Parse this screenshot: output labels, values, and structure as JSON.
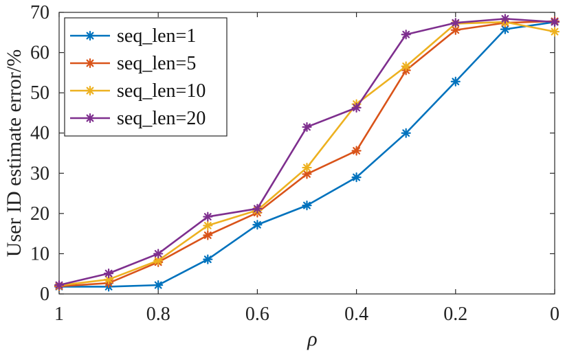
{
  "chart_data": {
    "type": "line",
    "title": "",
    "xlabel": "ρ",
    "ylabel": "User ID estimate error/%",
    "x": [
      1,
      0.9,
      0.8,
      0.7,
      0.6,
      0.5,
      0.4,
      0.3,
      0.2,
      0.1,
      0
    ],
    "xlim": [
      1,
      0
    ],
    "ylim": [
      0,
      70
    ],
    "xticks": [
      1,
      0.8,
      0.6,
      0.4,
      0.2,
      0
    ],
    "xtick_labels": [
      "1",
      "0.8",
      "0.6",
      "0.4",
      "0.2",
      "0"
    ],
    "yticks": [
      0,
      10,
      20,
      30,
      40,
      50,
      60,
      70
    ],
    "ytick_labels": [
      "0",
      "10",
      "20",
      "30",
      "40",
      "50",
      "60",
      "70"
    ],
    "grid": false,
    "legend_position": "top-left",
    "marker": "asterisk",
    "series": [
      {
        "name": "seq_len=1",
        "color": "#0072BD",
        "values": [
          1.8,
          1.8,
          2.2,
          8.6,
          17.2,
          22.0,
          29.0,
          40.0,
          52.8,
          65.8,
          67.6
        ]
      },
      {
        "name": "seq_len=5",
        "color": "#D95319",
        "values": [
          1.9,
          2.7,
          7.9,
          14.6,
          20.2,
          29.8,
          35.6,
          55.6,
          65.6,
          67.4,
          67.8
        ]
      },
      {
        "name": "seq_len=10",
        "color": "#EDB120",
        "values": [
          2.1,
          3.6,
          8.3,
          17.0,
          20.8,
          31.4,
          47.2,
          56.6,
          67.2,
          67.6,
          65.2
        ]
      },
      {
        "name": "seq_len=20",
        "color": "#7E2F8E",
        "values": [
          2.2,
          5.1,
          10.0,
          19.2,
          21.2,
          41.5,
          46.3,
          64.5,
          67.4,
          68.4,
          67.6
        ]
      }
    ]
  }
}
